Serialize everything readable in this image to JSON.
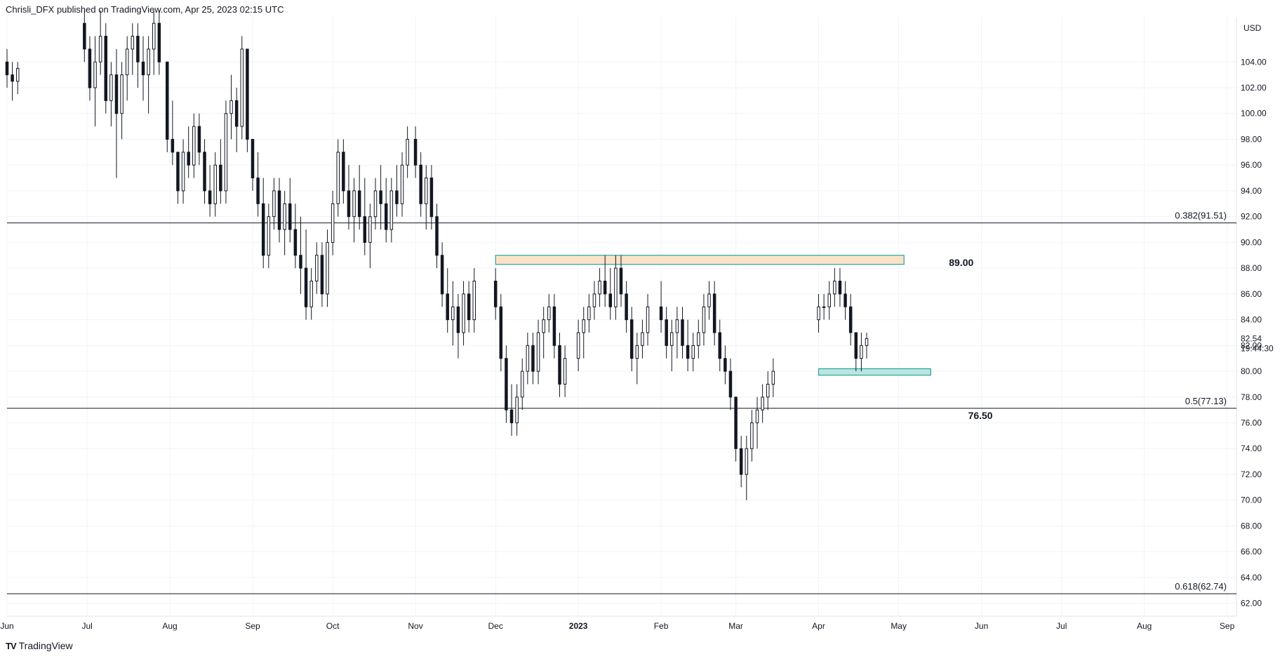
{
  "header": {
    "title": "Chrisli_DFX published on TradingView.com, Apr 25, 2023 02:15 UTC"
  },
  "footer": {
    "brand": "TradingView",
    "logo_text": "TV"
  },
  "chart_data": {
    "type": "candlestick",
    "currency": "USD",
    "ylim": [
      61,
      107.5
    ],
    "y_ticks": [
      "62.00",
      "64.00",
      "66.00",
      "68.00",
      "70.00",
      "72.00",
      "74.00",
      "76.00",
      "78.00",
      "80.00",
      "82.00",
      "84.00",
      "86.00",
      "88.00",
      "90.00",
      "92.00",
      "94.00",
      "96.00",
      "98.00",
      "100.00",
      "102.00",
      "104.00"
    ],
    "x_labels": [
      {
        "label": "Jun",
        "t": 0
      },
      {
        "label": "Jul",
        "t": 30
      },
      {
        "label": "Aug",
        "t": 61
      },
      {
        "label": "Sep",
        "t": 92
      },
      {
        "label": "Oct",
        "t": 122
      },
      {
        "label": "Nov",
        "t": 153
      },
      {
        "label": "Dec",
        "t": 183
      },
      {
        "label": "2023",
        "t": 214,
        "bold": true
      },
      {
        "label": "Feb",
        "t": 245
      },
      {
        "label": "Mar",
        "t": 273
      },
      {
        "label": "Apr",
        "t": 304
      },
      {
        "label": "May",
        "t": 334
      },
      {
        "label": "Jun",
        "t": 365
      },
      {
        "label": "Jul",
        "t": 395
      },
      {
        "label": "Aug",
        "t": 426
      },
      {
        "label": "Sep",
        "t": 457
      }
    ],
    "last_price": "82.54",
    "countdown": "19:44:30",
    "fib_levels": [
      {
        "value": 91.51,
        "label": "0.382(91.51)"
      },
      {
        "value": 77.13,
        "label": "0.5(77.13)"
      },
      {
        "value": 62.74,
        "label": "0.618(62.74)"
      }
    ],
    "zones": [
      {
        "name": "resistance-zone",
        "t_start": 183,
        "t_end": 336,
        "y_low": 88.3,
        "y_high": 89.0,
        "fill": "#fbe3c8",
        "stroke": "#26a69a",
        "label": "89.00"
      },
      {
        "name": "support-zone",
        "t_start": 304,
        "t_end": 346,
        "y_low": 79.7,
        "y_high": 80.2,
        "fill": "#b9e6df",
        "stroke": "#26a69a"
      }
    ],
    "annotations": [
      {
        "name": "level-76-50-label",
        "text": "76.50",
        "t": 360,
        "y": 76.3
      }
    ],
    "candles_ohlc": [
      [
        0,
        104,
        105,
        102,
        103
      ],
      [
        2,
        103,
        104,
        101,
        102.5
      ],
      [
        4,
        102.5,
        104,
        101.5,
        103.5
      ],
      [
        29,
        107,
        108,
        104,
        105
      ],
      [
        31,
        105,
        106,
        101,
        102
      ],
      [
        33,
        102,
        106,
        99,
        104
      ],
      [
        35,
        104,
        108,
        103,
        106
      ],
      [
        37,
        106,
        107,
        100,
        101
      ],
      [
        39,
        101,
        104,
        99,
        103
      ],
      [
        41,
        103,
        105,
        95,
        100
      ],
      [
        43,
        100,
        104,
        98,
        103
      ],
      [
        45,
        103,
        106,
        101,
        105
      ],
      [
        47,
        105,
        107,
        103,
        106
      ],
      [
        49,
        106,
        107,
        102,
        104
      ],
      [
        51,
        104,
        106,
        101,
        103
      ],
      [
        53,
        103,
        106,
        100,
        105
      ],
      [
        55,
        105,
        108,
        103,
        107
      ],
      [
        57,
        107,
        108,
        103,
        104
      ],
      [
        60,
        104,
        104,
        97,
        98
      ],
      [
        62,
        98,
        101,
        96,
        97
      ],
      [
        64,
        97,
        97,
        93,
        94
      ],
      [
        66,
        94,
        98,
        93,
        97
      ],
      [
        68,
        97,
        99,
        95,
        96
      ],
      [
        70,
        96,
        100,
        95,
        99
      ],
      [
        72,
        99,
        100,
        96,
        97
      ],
      [
        74,
        97,
        98,
        93,
        94
      ],
      [
        76,
        94,
        96,
        92,
        93
      ],
      [
        78,
        93,
        97,
        92,
        96
      ],
      [
        80,
        96,
        98,
        93,
        94
      ],
      [
        82,
        94,
        101,
        93,
        100
      ],
      [
        84,
        100,
        103,
        98,
        101
      ],
      [
        86,
        101,
        102,
        97,
        99
      ],
      [
        88,
        99,
        106,
        98,
        105
      ],
      [
        90,
        105,
        105,
        97,
        98
      ],
      [
        92,
        98,
        98,
        94,
        95
      ],
      [
        94,
        95,
        97,
        92,
        93
      ],
      [
        96,
        93,
        95,
        88,
        89
      ],
      [
        98,
        89,
        93,
        88,
        92
      ],
      [
        100,
        92,
        95,
        91,
        94
      ],
      [
        102,
        94,
        95,
        90,
        91
      ],
      [
        104,
        91,
        94,
        89,
        93
      ],
      [
        106,
        93,
        95,
        90,
        91
      ],
      [
        108,
        91,
        93,
        88,
        89
      ],
      [
        110,
        89,
        92,
        86,
        88
      ],
      [
        112,
        88,
        91,
        84,
        85
      ],
      [
        114,
        85,
        88,
        84,
        87
      ],
      [
        116,
        87,
        90,
        86,
        89
      ],
      [
        118,
        89,
        90,
        85,
        86
      ],
      [
        120,
        86,
        91,
        85,
        90
      ],
      [
        122,
        90,
        94,
        89,
        93
      ],
      [
        124,
        93,
        98,
        92,
        97
      ],
      [
        126,
        97,
        98,
        93,
        94
      ],
      [
        128,
        94,
        96,
        91,
        92
      ],
      [
        130,
        92,
        95,
        90,
        94
      ],
      [
        132,
        94,
        96,
        91,
        92
      ],
      [
        134,
        92,
        95,
        89,
        90
      ],
      [
        136,
        90,
        93,
        88,
        92
      ],
      [
        138,
        92,
        95,
        91,
        94
      ],
      [
        140,
        94,
        96,
        91,
        93
      ],
      [
        142,
        93,
        95,
        90,
        91
      ],
      [
        144,
        91,
        95,
        90,
        94
      ],
      [
        146,
        94,
        96,
        92,
        93
      ],
      [
        148,
        93,
        97,
        92,
        96
      ],
      [
        150,
        96,
        99,
        95,
        98
      ],
      [
        153,
        98,
        99,
        95,
        96
      ],
      [
        155,
        96,
        97,
        92,
        93
      ],
      [
        157,
        93,
        96,
        91,
        95
      ],
      [
        159,
        95,
        96,
        91,
        92
      ],
      [
        161,
        92,
        93,
        88,
        89
      ],
      [
        163,
        89,
        90,
        85,
        86
      ],
      [
        165,
        86,
        88,
        83,
        84
      ],
      [
        167,
        84,
        87,
        82,
        85
      ],
      [
        169,
        85,
        86,
        81,
        83
      ],
      [
        171,
        83,
        87,
        82,
        86
      ],
      [
        173,
        86,
        87,
        83,
        84
      ],
      [
        175,
        84,
        88,
        83,
        87
      ],
      [
        183,
        87,
        88,
        84,
        85
      ],
      [
        185,
        85,
        86,
        80,
        81
      ],
      [
        187,
        81,
        82,
        76,
        77
      ],
      [
        189,
        77,
        79,
        75,
        76
      ],
      [
        191,
        76,
        79,
        75,
        78
      ],
      [
        193,
        78,
        81,
        77,
        80
      ],
      [
        195,
        80,
        83,
        79,
        82
      ],
      [
        197,
        82,
        83,
        79,
        80
      ],
      [
        199,
        80,
        84,
        79,
        83
      ],
      [
        201,
        83,
        85,
        81,
        84
      ],
      [
        203,
        84,
        86,
        83,
        85
      ],
      [
        205,
        85,
        86,
        81,
        82
      ],
      [
        207,
        82,
        83,
        78,
        79
      ],
      [
        209,
        79,
        82,
        78,
        81
      ],
      [
        214,
        81,
        84,
        80,
        83
      ],
      [
        216,
        83,
        85,
        81,
        84
      ],
      [
        218,
        84,
        86,
        83,
        85
      ],
      [
        220,
        85,
        87,
        84,
        86
      ],
      [
        222,
        86,
        88,
        85,
        87
      ],
      [
        224,
        87,
        89,
        85,
        86
      ],
      [
        226,
        86,
        88,
        84,
        85
      ],
      [
        228,
        85,
        89,
        84,
        88
      ],
      [
        230,
        88,
        89,
        85,
        86
      ],
      [
        232,
        86,
        87,
        83,
        84
      ],
      [
        234,
        84,
        85,
        80,
        81
      ],
      [
        236,
        81,
        83,
        79,
        82
      ],
      [
        238,
        82,
        84,
        81,
        83
      ],
      [
        240,
        83,
        86,
        82,
        85
      ],
      [
        245,
        85,
        87,
        83,
        84
      ],
      [
        247,
        84,
        85,
        81,
        82
      ],
      [
        249,
        82,
        84,
        80,
        83
      ],
      [
        251,
        83,
        85,
        81,
        84
      ],
      [
        253,
        84,
        85,
        81,
        82
      ],
      [
        255,
        82,
        84,
        80,
        81
      ],
      [
        257,
        81,
        83,
        80,
        82
      ],
      [
        259,
        82,
        84,
        81,
        83
      ],
      [
        261,
        83,
        86,
        82,
        85
      ],
      [
        263,
        85,
        87,
        84,
        86
      ],
      [
        265,
        86,
        87,
        82,
        83
      ],
      [
        267,
        83,
        84,
        80,
        81
      ],
      [
        269,
        81,
        82,
        79,
        80
      ],
      [
        271,
        80,
        81,
        77,
        78
      ],
      [
        273,
        78,
        78,
        73,
        74
      ],
      [
        275,
        74,
        75,
        71,
        72
      ],
      [
        277,
        72,
        75,
        70,
        74
      ],
      [
        279,
        74,
        77,
        73,
        76
      ],
      [
        281,
        76,
        78,
        74,
        77
      ],
      [
        283,
        77,
        79,
        76,
        78
      ],
      [
        285,
        78,
        80,
        77,
        79
      ],
      [
        287,
        79,
        81,
        78,
        80
      ],
      [
        304,
        84,
        86,
        83,
        85
      ],
      [
        306,
        85,
        86,
        84,
        85
      ],
      [
        308,
        85,
        87,
        84,
        86
      ],
      [
        310,
        86,
        88,
        85,
        87
      ],
      [
        312,
        87,
        88,
        85,
        86
      ],
      [
        314,
        86,
        87,
        84,
        85
      ],
      [
        316,
        85,
        86,
        82,
        83
      ],
      [
        318,
        83,
        83,
        80,
        81
      ],
      [
        320,
        81,
        83,
        80,
        82
      ],
      [
        322,
        82,
        83,
        81,
        82.54
      ]
    ]
  }
}
